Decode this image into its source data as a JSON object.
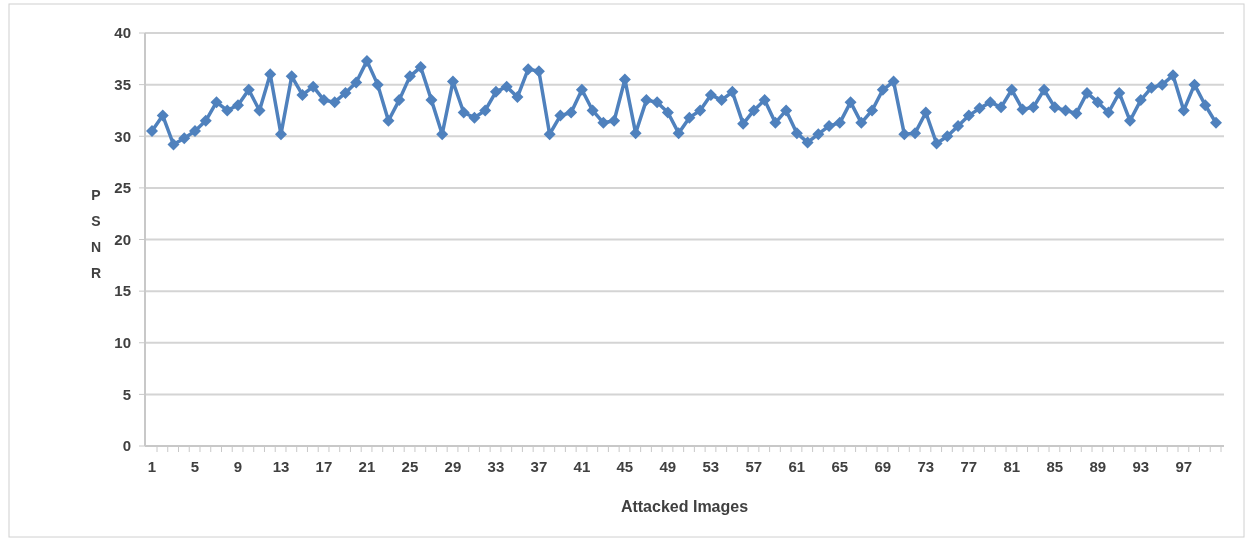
{
  "chart_data": {
    "type": "line",
    "xlabel": "Attacked Images",
    "ylabel": "PSNR",
    "categories": [
      "1",
      null,
      null,
      null,
      "5",
      null,
      null,
      null,
      "9",
      null,
      null,
      null,
      "13",
      null,
      null,
      null,
      "17",
      null,
      null,
      null,
      "21",
      null,
      null,
      null,
      "25",
      null,
      null,
      null,
      "29",
      null,
      null,
      null,
      "33",
      null,
      null,
      null,
      "37",
      null,
      null,
      null,
      "41",
      null,
      null,
      null,
      "45",
      null,
      null,
      null,
      "49",
      null,
      null,
      null,
      "53",
      null,
      null,
      null,
      "57",
      null,
      null,
      null,
      "61",
      null,
      null,
      null,
      "65",
      null,
      null,
      null,
      "69",
      null,
      null,
      null,
      "73",
      null,
      null,
      null,
      "77",
      null,
      null,
      null,
      "81",
      null,
      null,
      null,
      "85",
      null,
      null,
      null,
      "89",
      null,
      null,
      null,
      "93",
      null,
      null,
      null,
      "97",
      null,
      null,
      null
    ],
    "series": [
      {
        "color": "#4f81bd",
        "values": [
          30.5,
          32,
          29.2,
          29.8,
          30.5,
          31.5,
          33.3,
          32.5,
          33,
          34.5,
          32.5,
          36,
          30.2,
          35.8,
          34,
          34.8,
          33.5,
          33.3,
          34.2,
          35.2,
          37.3,
          35,
          31.5,
          33.5,
          35.8,
          36.7,
          33.5,
          30.2,
          35.3,
          32.3,
          31.8,
          32.5,
          34.3,
          34.8,
          33.8,
          36.5,
          36.3,
          30.2,
          32,
          32.3,
          34.5,
          32.5,
          31.3,
          31.5,
          35.5,
          30.3,
          33.5,
          33.3,
          32.3,
          30.3,
          31.8,
          32.5,
          34,
          33.5,
          34.3,
          31.2,
          32.5,
          33.5,
          31.3,
          32.5,
          30.3,
          29.4,
          30.2,
          31,
          31.3,
          33.3,
          31.3,
          32.5,
          34.5,
          35.3,
          30.2,
          30.3,
          32.3,
          29.3,
          30,
          31,
          32,
          32.7,
          33.3,
          32.8,
          34.5,
          32.6,
          32.8,
          34.5,
          32.8,
          32.5,
          32.2,
          34.2,
          33.3,
          32.3,
          34.2,
          31.5,
          33.5,
          34.7,
          35,
          35.9,
          32.5,
          35,
          33,
          31.3
        ]
      }
    ],
    "ylim": [
      0,
      40
    ],
    "yticks": [
      0,
      5,
      10,
      15,
      20,
      25,
      30,
      35,
      40
    ],
    "grid": "y",
    "marker": "diamond",
    "line_style": "solid"
  }
}
